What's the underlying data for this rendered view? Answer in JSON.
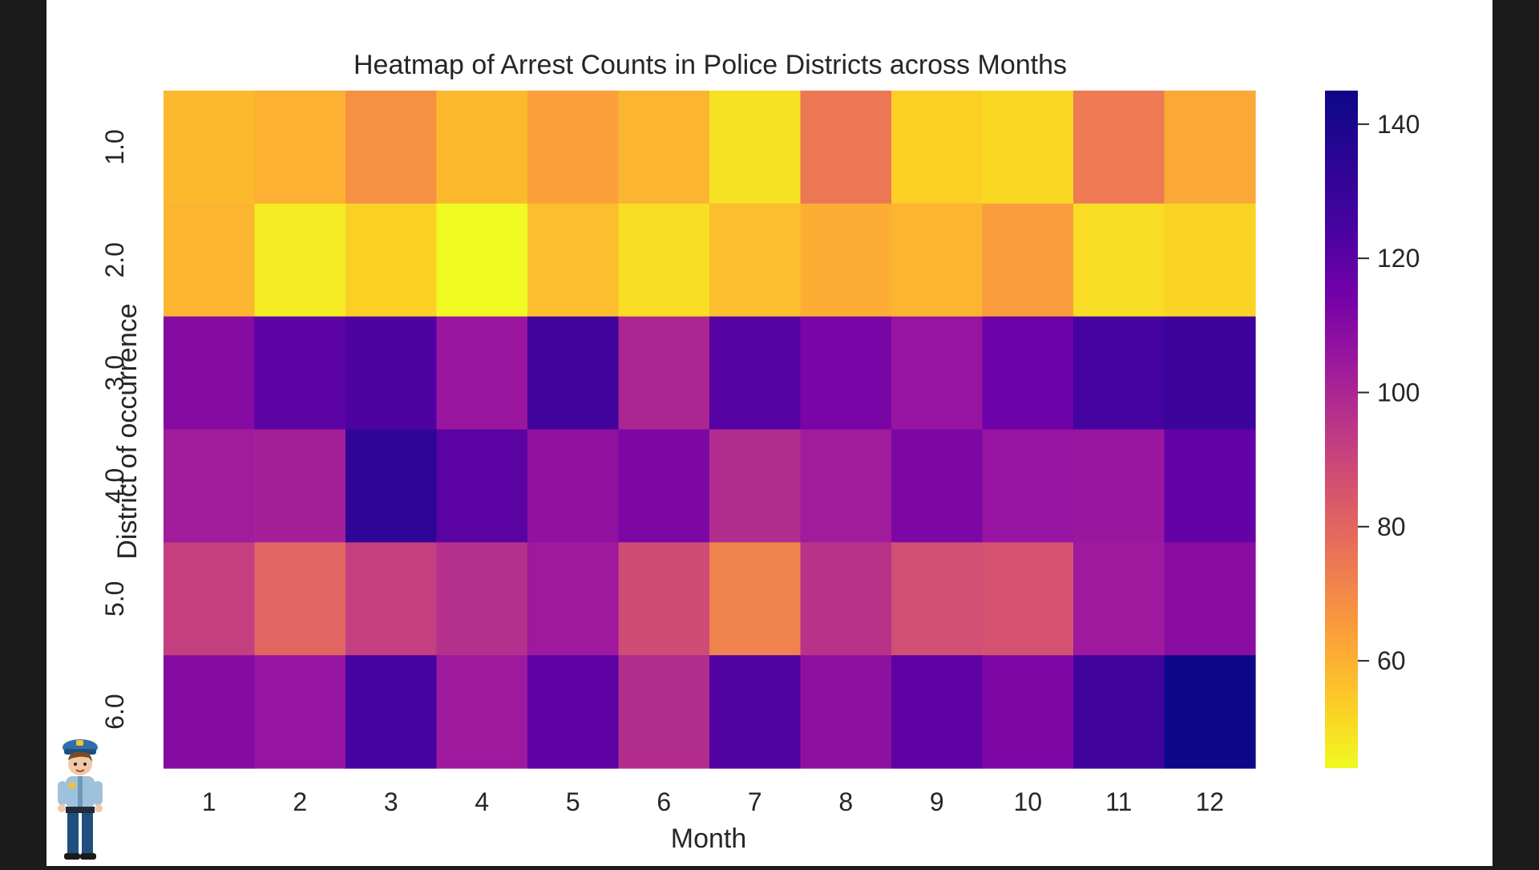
{
  "chart_data": {
    "type": "heatmap",
    "title": "Heatmap of Arrest Counts in Police Districts across Months",
    "xlabel": "Month",
    "ylabel": "District of occurrence",
    "x_categories": [
      "1",
      "2",
      "3",
      "4",
      "5",
      "6",
      "7",
      "8",
      "9",
      "10",
      "11",
      "12"
    ],
    "y_categories": [
      "1.0",
      "2.0",
      "3.0",
      "4.0",
      "5.0",
      "6.0"
    ],
    "values": [
      [
        58,
        60,
        68,
        58,
        64,
        59,
        49,
        75,
        53,
        51,
        74,
        62
      ],
      [
        59,
        47,
        53,
        44,
        57,
        50,
        57,
        61,
        59,
        65,
        50,
        52
      ],
      [
        110,
        120,
        123,
        105,
        127,
        100,
        121,
        113,
        106,
        116,
        125,
        128
      ],
      [
        103,
        102,
        133,
        120,
        107,
        112,
        98,
        103,
        112,
        106,
        105,
        118
      ],
      [
        92,
        80,
        92,
        97,
        104,
        88,
        72,
        96,
        87,
        86,
        104,
        109
      ],
      [
        110,
        106,
        125,
        104,
        119,
        98,
        122,
        108,
        119,
        112,
        127,
        145
      ]
    ],
    "colormap": "plasma_r",
    "vmin": 44,
    "vmax": 145,
    "colorbar_ticks": [
      "60",
      "80",
      "100",
      "120",
      "140"
    ],
    "grid": false
  },
  "decor": {
    "mascot": "police-officer-mascot"
  }
}
